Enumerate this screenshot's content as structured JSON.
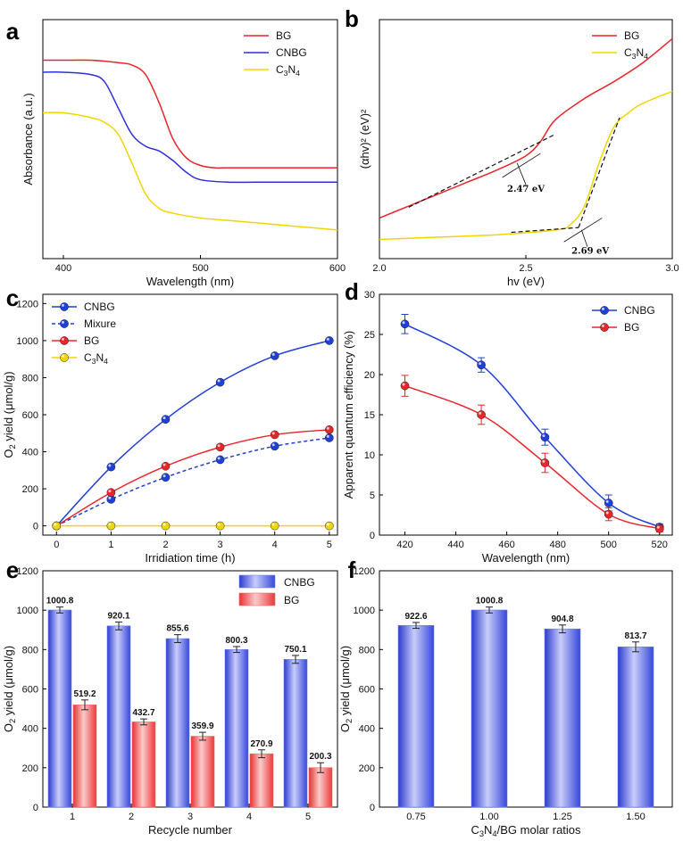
{
  "chart_data": [
    {
      "panel": "a",
      "type": "line",
      "xlabel": "Wavelength (nm)",
      "ylabel": "Absorbance (a.u.)",
      "xlim": [
        385,
        600
      ],
      "ylim": [
        0,
        1
      ],
      "xticks": [
        "400",
        "500",
        "600"
      ],
      "legend": "top-right",
      "series": [
        {
          "name": "BG",
          "color": "#e8262a",
          "x": [
            385,
            400,
            420,
            440,
            450,
            460,
            470,
            480,
            490,
            500,
            510,
            520,
            540,
            560,
            580,
            600
          ],
          "y": [
            0.83,
            0.83,
            0.83,
            0.82,
            0.81,
            0.77,
            0.65,
            0.5,
            0.42,
            0.39,
            0.38,
            0.38,
            0.38,
            0.38,
            0.38,
            0.38
          ]
        },
        {
          "name": "CNBG",
          "color": "#2f2fd6",
          "x": [
            385,
            400,
            420,
            430,
            440,
            450,
            460,
            470,
            480,
            490,
            500,
            520,
            540,
            560,
            580,
            600
          ],
          "y": [
            0.78,
            0.78,
            0.77,
            0.74,
            0.63,
            0.52,
            0.47,
            0.45,
            0.41,
            0.36,
            0.33,
            0.32,
            0.32,
            0.32,
            0.32,
            0.32
          ]
        },
        {
          "name": "C3N4",
          "sub": "3,4",
          "color": "#f0d600",
          "x": [
            385,
            400,
            420,
            430,
            440,
            450,
            460,
            470,
            480,
            500,
            520,
            540,
            560,
            580,
            600
          ],
          "y": [
            0.61,
            0.61,
            0.59,
            0.57,
            0.52,
            0.4,
            0.27,
            0.21,
            0.19,
            0.17,
            0.16,
            0.15,
            0.14,
            0.13,
            0.12
          ]
        }
      ]
    },
    {
      "panel": "b",
      "type": "line",
      "xlabel": "hv (eV)",
      "ylabel": "(αhv)² (eV)²",
      "xlim": [
        2.0,
        3.0
      ],
      "ylim": [
        0,
        1
      ],
      "xticks": [
        "2.0",
        "2.5",
        "3.0"
      ],
      "legend": "top-right",
      "annotations": [
        "2.47 eV",
        "2.69 eV"
      ],
      "series": [
        {
          "name": "BG",
          "color": "#e8262a",
          "x": [
            2.0,
            2.1,
            2.2,
            2.3,
            2.4,
            2.5,
            2.55,
            2.6,
            2.7,
            2.8,
            2.9,
            3.0
          ],
          "y": [
            0.17,
            0.22,
            0.27,
            0.32,
            0.37,
            0.43,
            0.49,
            0.58,
            0.67,
            0.74,
            0.82,
            0.92
          ]
        },
        {
          "name": "C3N4",
          "sub": "3,4",
          "color": "#f0d600",
          "x": [
            2.0,
            2.2,
            2.4,
            2.6,
            2.65,
            2.7,
            2.75,
            2.8,
            2.85,
            2.9,
            3.0
          ],
          "y": [
            0.08,
            0.09,
            0.1,
            0.12,
            0.14,
            0.22,
            0.4,
            0.55,
            0.61,
            0.65,
            0.7
          ]
        }
      ]
    },
    {
      "panel": "c",
      "type": "line",
      "xlabel": "Irridiation time (h)",
      "ylabel": "O2 yield (μmol/g)",
      "xlim": [
        -0.25,
        5.15
      ],
      "ylim": [
        -50,
        1250
      ],
      "xticks": [
        "0",
        "1",
        "2",
        "3",
        "4",
        "5"
      ],
      "yticks": [
        "0",
        "200",
        "400",
        "600",
        "800",
        "1000",
        "1200"
      ],
      "legend": "top-left",
      "categories": [
        0,
        1,
        2,
        3,
        4,
        5
      ],
      "series": [
        {
          "name": "CNBG",
          "color": "#1f3fd9",
          "values": [
            0,
            318,
            575,
            775,
            918,
            1000
          ]
        },
        {
          "name": "Mixure",
          "color": "#1f3fd9",
          "dashed": true,
          "values": [
            0,
            143,
            262,
            357,
            430,
            475
          ]
        },
        {
          "name": "BG",
          "color": "#e8262a",
          "values": [
            0,
            180,
            322,
            425,
            492,
            519
          ]
        },
        {
          "name": "C3N4",
          "sub": "3,4",
          "color": "#f0d600",
          "values": [
            0,
            0,
            0,
            0,
            0,
            0
          ]
        }
      ]
    },
    {
      "panel": "d",
      "type": "scatter",
      "xlabel": "Wavelength (nm)",
      "ylabel": "Apparent quantum efficiency (%)",
      "xlim": [
        410,
        525
      ],
      "ylim": [
        0,
        30
      ],
      "xticks": [
        "420",
        "440",
        "460",
        "480",
        "500",
        "520"
      ],
      "yticks": [
        "0",
        "5",
        "10",
        "15",
        "20",
        "25",
        "30"
      ],
      "legend": "top-right",
      "categories": [
        420,
        450,
        475,
        500,
        520
      ],
      "series": [
        {
          "name": "CNBG",
          "color": "#1f3fd9",
          "values": [
            26.3,
            21.2,
            12.2,
            4.0,
            1.0
          ],
          "errors": [
            1.2,
            0.9,
            1.0,
            1.0,
            0.4
          ]
        },
        {
          "name": "BG",
          "color": "#e8262a",
          "values": [
            18.6,
            15.0,
            9.0,
            2.6,
            0.8
          ],
          "errors": [
            1.3,
            1.2,
            1.2,
            0.8,
            0.4
          ]
        }
      ]
    },
    {
      "panel": "e",
      "type": "bar",
      "xlabel": "Recycle number",
      "ylabel": "O2 yield (μmol/g)",
      "ylim": [
        0,
        1200
      ],
      "yticks": [
        "0",
        "200",
        "400",
        "600",
        "800",
        "1000",
        "1200"
      ],
      "legend": "top-right",
      "categories": [
        "1",
        "2",
        "3",
        "4",
        "5"
      ],
      "series": [
        {
          "name": "CNBG",
          "color": "#6f7ff0",
          "values": [
            1000.8,
            920.1,
            855.6,
            800.3,
            750.1
          ],
          "labels": [
            "1000.8",
            "920.1",
            "855.6",
            "800.3",
            "750.1"
          ],
          "errors": [
            15,
            20,
            20,
            15,
            20
          ]
        },
        {
          "name": "BG",
          "color": "#f06a6a",
          "values": [
            519.2,
            432.7,
            359.9,
            270.9,
            200.3
          ],
          "labels": [
            "519.2",
            "432.7",
            "359.9",
            "270.9",
            "200.3"
          ],
          "errors": [
            25,
            15,
            20,
            20,
            25
          ]
        }
      ]
    },
    {
      "panel": "f",
      "type": "bar",
      "xlabel": "C3N4/BG molar ratios",
      "ylabel": "O2 yield (μmol/g)",
      "ylim": [
        0,
        1200
      ],
      "yticks": [
        "0",
        "200",
        "400",
        "600",
        "800",
        "1000",
        "1200"
      ],
      "categories": [
        "0.75",
        "1.00",
        "1.25",
        "1.50"
      ],
      "series": [
        {
          "color": "#6f7ff0",
          "values": [
            922.6,
            1000.8,
            904.8,
            813.7
          ],
          "labels": [
            "922.6",
            "1000.8",
            "904.8",
            "813.7"
          ],
          "errors": [
            15,
            15,
            20,
            25
          ]
        }
      ]
    }
  ]
}
